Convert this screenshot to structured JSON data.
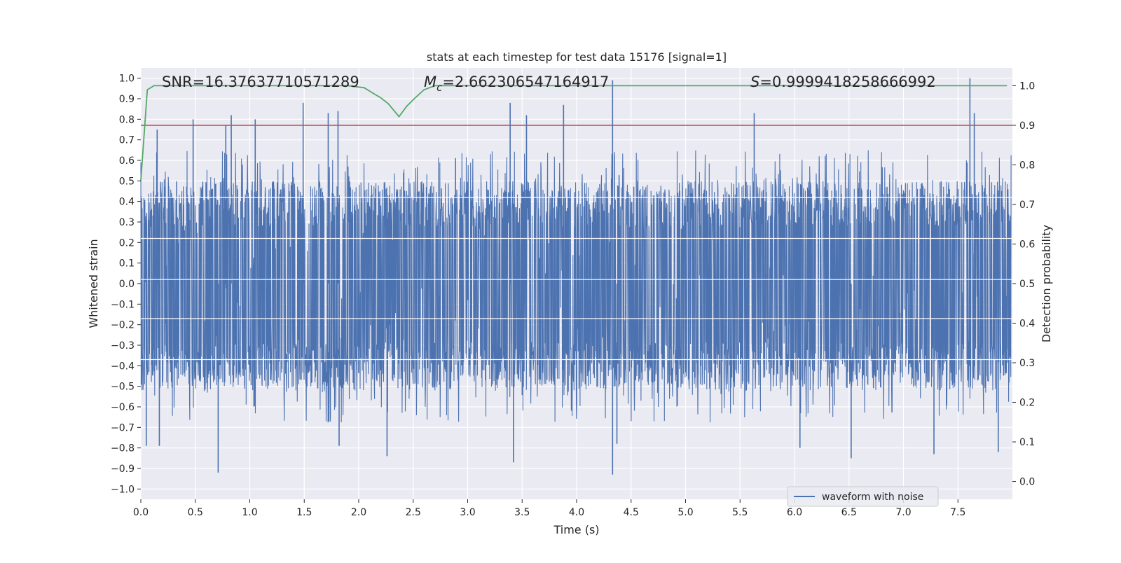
{
  "chart_data": {
    "type": "line",
    "title": "stats at each timestep for test data 15176 [signal=1]",
    "xlabel": "Time (s)",
    "ylabel": "Whitened strain",
    "y2label": "Detection probability",
    "xlim": [
      0.0,
      8.0
    ],
    "ylim": [
      -1.05,
      1.05
    ],
    "y2lim": [
      -0.045,
      1.045
    ],
    "x_ticks": [
      0.0,
      0.5,
      1.0,
      1.5,
      2.0,
      2.5,
      3.0,
      3.5,
      4.0,
      4.5,
      5.0,
      5.5,
      6.0,
      6.5,
      7.0,
      7.5
    ],
    "x_tick_labels": [
      "0.0",
      "0.5",
      "1.0",
      "1.5",
      "2.0",
      "2.5",
      "3.0",
      "3.5",
      "4.0",
      "4.5",
      "5.0",
      "5.5",
      "6.0",
      "6.5",
      "7.0",
      "7.5"
    ],
    "y_ticks": [
      1.0,
      0.9,
      0.8,
      0.7,
      0.6,
      0.5,
      0.4,
      0.3,
      0.2,
      0.1,
      0.0,
      -0.1,
      -0.2,
      -0.3,
      -0.4,
      -0.5,
      -0.6,
      -0.7,
      -0.8,
      -0.9,
      -1.0
    ],
    "y_tick_labels": [
      "1.0",
      "0.9",
      "0.8",
      "0.7",
      "0.6",
      "0.5",
      "0.4",
      "0.3",
      "0.2",
      "0.1",
      "0.0",
      "−0.1",
      "−0.2",
      "−0.3",
      "−0.4",
      "−0.5",
      "−0.6",
      "−0.7",
      "−0.8",
      "−0.9",
      "−1.0"
    ],
    "y2_ticks": [
      1.0,
      0.9,
      0.8,
      0.7,
      0.6,
      0.5,
      0.4,
      0.3,
      0.2,
      0.1,
      0.0
    ],
    "y2_tick_labels": [
      "1.0",
      "0.9",
      "0.8",
      "0.7",
      "0.6",
      "0.5",
      "0.4",
      "0.3",
      "0.2",
      "0.1",
      "0.0"
    ],
    "grid": true,
    "legend": {
      "position": "lower-right",
      "entries": [
        "waveform with noise"
      ]
    },
    "annotations": {
      "snr": "SNR=16.37637710571289",
      "mc_symbol": "M",
      "mc_sub": "c",
      "mc_value": "=2.662306547164917",
      "s_symbol": "S",
      "s_value": "=0.9999418258666992"
    },
    "threshold": {
      "axis": "y2",
      "value": 0.9,
      "color": "#c44e52"
    },
    "series": [
      {
        "name": "waveform with noise",
        "axis": "y",
        "color": "#4c72b0",
        "kind": "noise",
        "x_range": [
          0.0,
          7.99
        ],
        "n_samples": 3200,
        "base_amplitude": 0.38,
        "envelope_mean": [
          0.5,
          -0.52
        ],
        "peaks": [
          {
            "x": 0.05,
            "y": -0.79
          },
          {
            "x": 0.15,
            "y": 0.75
          },
          {
            "x": 0.17,
            "y": -0.79
          },
          {
            "x": 0.48,
            "y": 0.8
          },
          {
            "x": 0.71,
            "y": -0.92
          },
          {
            "x": 0.78,
            "y": 0.77
          },
          {
            "x": 0.83,
            "y": 0.82
          },
          {
            "x": 1.05,
            "y": 0.8
          },
          {
            "x": 1.49,
            "y": 0.88
          },
          {
            "x": 1.72,
            "y": 0.83
          },
          {
            "x": 1.81,
            "y": 0.84
          },
          {
            "x": 1.82,
            "y": -0.79
          },
          {
            "x": 2.26,
            "y": -0.84
          },
          {
            "x": 3.39,
            "y": 0.88
          },
          {
            "x": 3.42,
            "y": -0.87
          },
          {
            "x": 3.54,
            "y": 0.82
          },
          {
            "x": 3.88,
            "y": 0.87
          },
          {
            "x": 4.33,
            "y": 0.99
          },
          {
            "x": 4.33,
            "y": -0.93
          },
          {
            "x": 4.37,
            "y": -0.78
          },
          {
            "x": 5.63,
            "y": 0.83
          },
          {
            "x": 6.05,
            "y": -0.8
          },
          {
            "x": 6.52,
            "y": -0.85
          },
          {
            "x": 7.28,
            "y": -0.83
          },
          {
            "x": 7.61,
            "y": 1.0
          },
          {
            "x": 7.65,
            "y": 0.83
          },
          {
            "x": 7.87,
            "y": -0.82
          }
        ]
      },
      {
        "name": "detection probability",
        "axis": "y2",
        "color": "#55a868",
        "x": [
          0.0,
          0.06,
          0.12,
          0.2,
          0.4,
          1.0,
          1.5,
          1.9,
          2.05,
          2.15,
          2.2,
          2.27,
          2.37,
          2.44,
          2.52,
          2.6,
          2.7,
          3.0,
          4.0,
          5.0,
          6.0,
          7.0,
          7.95
        ],
        "values": [
          0.76,
          0.99,
          1.0,
          1.0,
          1.0,
          1.0,
          1.0,
          1.0,
          0.995,
          0.978,
          0.97,
          0.955,
          0.922,
          0.948,
          0.97,
          0.99,
          1.0,
          1.0,
          1.0,
          1.0,
          1.0,
          1.0,
          1.0
        ]
      }
    ]
  }
}
